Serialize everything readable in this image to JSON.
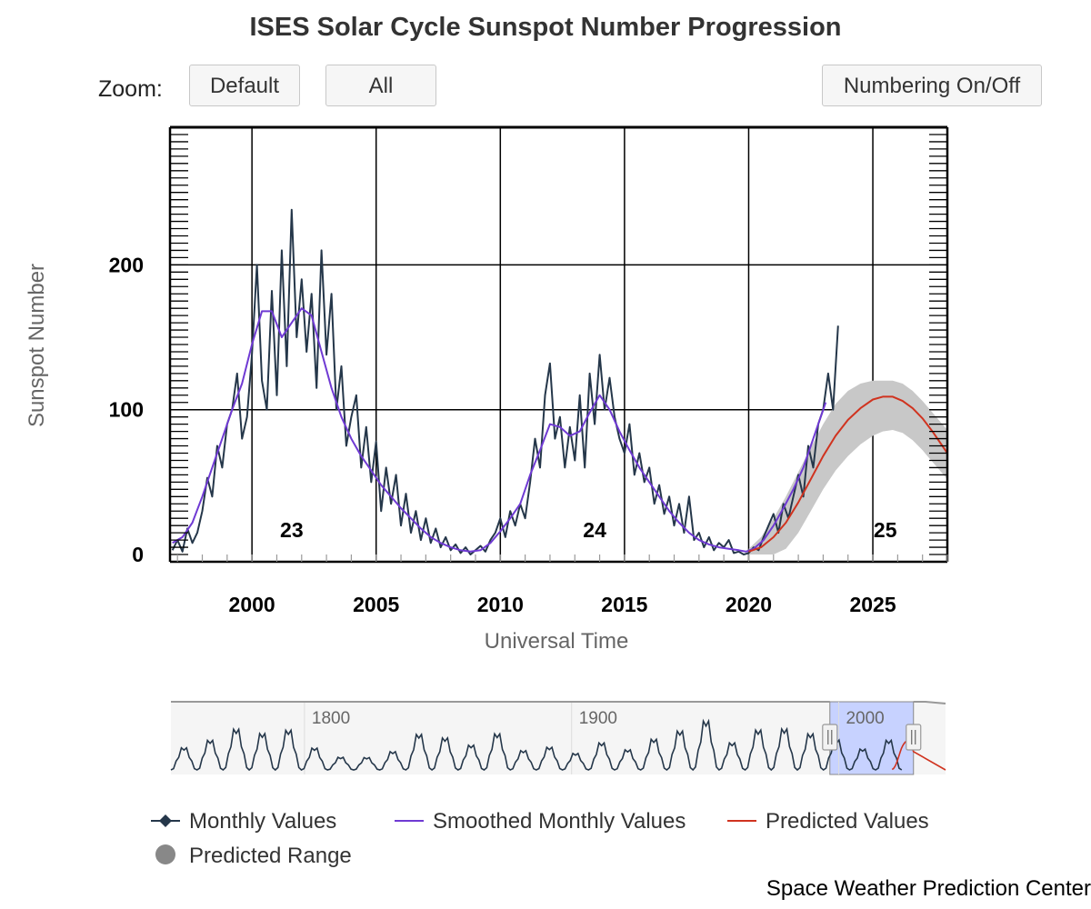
{
  "title": "ISES Solar Cycle Sunspot Number Progression",
  "toolbar": {
    "zoom_label": "Zoom:",
    "default_label": "Default",
    "all_label": "All",
    "numbering_label": "Numbering On/Off"
  },
  "credit": "Space Weather Prediction Center",
  "colors": {
    "monthly": "#25374a",
    "smoothed": "#6f3ad3",
    "predicted": "#d0331f",
    "range": "#c8c8c8",
    "navigator_mask": "#c7d2ff"
  },
  "chart_data": {
    "type": "line",
    "title": "ISES Solar Cycle Sunspot Number Progression",
    "xlabel": "Universal Time",
    "ylabel": "Sunspot Number",
    "xlim": [
      1996.7,
      2028.0
    ],
    "ylim": [
      -5,
      295
    ],
    "x_ticks": [
      2000,
      2005,
      2010,
      2015,
      2020,
      2025
    ],
    "y_ticks": [
      0,
      100,
      200
    ],
    "grid": true,
    "cycle_labels": [
      {
        "label": "23",
        "x": 2001.6,
        "y": 12
      },
      {
        "label": "24",
        "x": 2013.8,
        "y": 12
      },
      {
        "label": "25",
        "x": 2025.5,
        "y": 12
      }
    ],
    "monthly_points": [
      [
        1996.8,
        3
      ],
      [
        1997.0,
        10
      ],
      [
        1997.2,
        2
      ],
      [
        1997.4,
        18
      ],
      [
        1997.6,
        8
      ],
      [
        1997.8,
        15
      ],
      [
        1998.0,
        30
      ],
      [
        1998.2,
        53
      ],
      [
        1998.4,
        40
      ],
      [
        1998.6,
        75
      ],
      [
        1998.8,
        60
      ],
      [
        1999.0,
        90
      ],
      [
        1999.2,
        100
      ],
      [
        1999.4,
        125
      ],
      [
        1999.6,
        80
      ],
      [
        1999.8,
        95
      ],
      [
        2000.0,
        138
      ],
      [
        2000.2,
        200
      ],
      [
        2000.4,
        120
      ],
      [
        2000.6,
        100
      ],
      [
        2000.8,
        182
      ],
      [
        2001.0,
        110
      ],
      [
        2001.2,
        210
      ],
      [
        2001.4,
        130
      ],
      [
        2001.6,
        238
      ],
      [
        2001.8,
        150
      ],
      [
        2002.0,
        190
      ],
      [
        2002.2,
        140
      ],
      [
        2002.4,
        180
      ],
      [
        2002.6,
        115
      ],
      [
        2002.8,
        210
      ],
      [
        2003.0,
        138
      ],
      [
        2003.2,
        180
      ],
      [
        2003.4,
        100
      ],
      [
        2003.6,
        130
      ],
      [
        2003.8,
        75
      ],
      [
        2004.0,
        95
      ],
      [
        2004.2,
        110
      ],
      [
        2004.4,
        60
      ],
      [
        2004.6,
        88
      ],
      [
        2004.8,
        50
      ],
      [
        2005.0,
        78
      ],
      [
        2005.2,
        30
      ],
      [
        2005.4,
        60
      ],
      [
        2005.6,
        35
      ],
      [
        2005.8,
        55
      ],
      [
        2006.0,
        20
      ],
      [
        2006.2,
        42
      ],
      [
        2006.4,
        15
      ],
      [
        2006.6,
        30
      ],
      [
        2006.8,
        10
      ],
      [
        2007.0,
        25
      ],
      [
        2007.2,
        8
      ],
      [
        2007.4,
        18
      ],
      [
        2007.6,
        5
      ],
      [
        2007.8,
        12
      ],
      [
        2008.0,
        3
      ],
      [
        2008.2,
        7
      ],
      [
        2008.4,
        1
      ],
      [
        2008.6,
        5
      ],
      [
        2008.8,
        0
      ],
      [
        2009.0,
        3
      ],
      [
        2009.2,
        6
      ],
      [
        2009.4,
        2
      ],
      [
        2009.6,
        10
      ],
      [
        2009.8,
        15
      ],
      [
        2010.0,
        25
      ],
      [
        2010.2,
        12
      ],
      [
        2010.4,
        30
      ],
      [
        2010.6,
        20
      ],
      [
        2010.8,
        35
      ],
      [
        2011.0,
        25
      ],
      [
        2011.2,
        50
      ],
      [
        2011.4,
        80
      ],
      [
        2011.6,
        60
      ],
      [
        2011.8,
        110
      ],
      [
        2012.0,
        132
      ],
      [
        2012.2,
        80
      ],
      [
        2012.4,
        95
      ],
      [
        2012.6,
        60
      ],
      [
        2012.8,
        88
      ],
      [
        2013.0,
        65
      ],
      [
        2013.2,
        110
      ],
      [
        2013.4,
        60
      ],
      [
        2013.6,
        125
      ],
      [
        2013.8,
        90
      ],
      [
        2014.0,
        138
      ],
      [
        2014.2,
        100
      ],
      [
        2014.4,
        122
      ],
      [
        2014.6,
        95
      ],
      [
        2014.8,
        80
      ],
      [
        2015.0,
        70
      ],
      [
        2015.2,
        90
      ],
      [
        2015.4,
        55
      ],
      [
        2015.6,
        70
      ],
      [
        2015.8,
        50
      ],
      [
        2016.0,
        60
      ],
      [
        2016.2,
        35
      ],
      [
        2016.4,
        48
      ],
      [
        2016.6,
        28
      ],
      [
        2016.8,
        40
      ],
      [
        2017.0,
        20
      ],
      [
        2017.2,
        35
      ],
      [
        2017.4,
        15
      ],
      [
        2017.6,
        40
      ],
      [
        2017.8,
        10
      ],
      [
        2018.0,
        15
      ],
      [
        2018.2,
        5
      ],
      [
        2018.4,
        12
      ],
      [
        2018.6,
        3
      ],
      [
        2018.8,
        8
      ],
      [
        2019.0,
        5
      ],
      [
        2019.2,
        10
      ],
      [
        2019.4,
        1
      ],
      [
        2019.6,
        2
      ],
      [
        2019.8,
        0
      ],
      [
        2020.0,
        1
      ],
      [
        2020.2,
        5
      ],
      [
        2020.4,
        3
      ],
      [
        2020.6,
        12
      ],
      [
        2020.8,
        20
      ],
      [
        2021.0,
        28
      ],
      [
        2021.2,
        15
      ],
      [
        2021.4,
        35
      ],
      [
        2021.6,
        25
      ],
      [
        2021.8,
        40
      ],
      [
        2022.0,
        55
      ],
      [
        2022.2,
        40
      ],
      [
        2022.4,
        75
      ],
      [
        2022.6,
        60
      ],
      [
        2022.8,
        90
      ],
      [
        2023.0,
        100
      ],
      [
        2023.2,
        125
      ],
      [
        2023.4,
        100
      ],
      [
        2023.6,
        158
      ]
    ],
    "smoothed_points": [
      [
        1996.8,
        8
      ],
      [
        1997.2,
        12
      ],
      [
        1997.6,
        22
      ],
      [
        1998.0,
        40
      ],
      [
        1998.4,
        60
      ],
      [
        1998.8,
        80
      ],
      [
        1999.2,
        100
      ],
      [
        1999.6,
        118
      ],
      [
        2000.0,
        145
      ],
      [
        2000.4,
        168
      ],
      [
        2000.8,
        168
      ],
      [
        2001.2,
        150
      ],
      [
        2001.6,
        160
      ],
      [
        2002.0,
        170
      ],
      [
        2002.4,
        165
      ],
      [
        2002.8,
        140
      ],
      [
        2003.2,
        115
      ],
      [
        2003.6,
        95
      ],
      [
        2004.0,
        80
      ],
      [
        2004.4,
        68
      ],
      [
        2004.8,
        58
      ],
      [
        2005.2,
        48
      ],
      [
        2005.6,
        40
      ],
      [
        2006.0,
        32
      ],
      [
        2006.4,
        25
      ],
      [
        2006.8,
        18
      ],
      [
        2007.2,
        12
      ],
      [
        2007.6,
        8
      ],
      [
        2008.0,
        5
      ],
      [
        2008.4,
        3
      ],
      [
        2008.8,
        2
      ],
      [
        2009.2,
        3
      ],
      [
        2009.6,
        8
      ],
      [
        2010.0,
        16
      ],
      [
        2010.4,
        25
      ],
      [
        2010.8,
        35
      ],
      [
        2011.2,
        55
      ],
      [
        2011.6,
        72
      ],
      [
        2012.0,
        90
      ],
      [
        2012.4,
        88
      ],
      [
        2012.8,
        82
      ],
      [
        2013.2,
        85
      ],
      [
        2013.6,
        98
      ],
      [
        2014.0,
        110
      ],
      [
        2014.4,
        100
      ],
      [
        2014.8,
        85
      ],
      [
        2015.2,
        72
      ],
      [
        2015.6,
        60
      ],
      [
        2016.0,
        50
      ],
      [
        2016.4,
        40
      ],
      [
        2016.8,
        30
      ],
      [
        2017.2,
        22
      ],
      [
        2017.6,
        15
      ],
      [
        2018.0,
        10
      ],
      [
        2018.4,
        7
      ],
      [
        2018.8,
        5
      ],
      [
        2019.2,
        4
      ],
      [
        2019.6,
        3
      ],
      [
        2019.9,
        2
      ],
      [
        2020.2,
        4
      ],
      [
        2020.6,
        10
      ],
      [
        2021.0,
        20
      ],
      [
        2021.4,
        32
      ],
      [
        2021.8,
        45
      ],
      [
        2022.2,
        60
      ],
      [
        2022.6,
        80
      ],
      [
        2022.9,
        95
      ],
      [
        2023.1,
        105
      ]
    ],
    "predicted_points": [
      [
        2020.0,
        2
      ],
      [
        2020.5,
        5
      ],
      [
        2021.0,
        12
      ],
      [
        2021.5,
        22
      ],
      [
        2022.0,
        36
      ],
      [
        2022.5,
        52
      ],
      [
        2023.0,
        68
      ],
      [
        2023.5,
        82
      ],
      [
        2024.0,
        93
      ],
      [
        2024.5,
        101
      ],
      [
        2025.0,
        107
      ],
      [
        2025.4,
        109
      ],
      [
        2025.8,
        109
      ],
      [
        2026.2,
        106
      ],
      [
        2026.6,
        101
      ],
      [
        2027.0,
        94
      ],
      [
        2027.4,
        85
      ],
      [
        2027.8,
        75
      ],
      [
        2028.0,
        70
      ]
    ],
    "predicted_range": {
      "x": [
        2020.0,
        2020.5,
        2021.0,
        2021.5,
        2022.0,
        2022.5,
        2023.0,
        2023.5,
        2024.0,
        2024.5,
        2025.0,
        2025.4,
        2025.8,
        2026.2,
        2026.6,
        2027.0,
        2027.4,
        2027.8,
        2028.0
      ],
      "lower": [
        0,
        0,
        0,
        4,
        15,
        30,
        45,
        58,
        68,
        76,
        82,
        85,
        86,
        84,
        79,
        72,
        64,
        56,
        52
      ],
      "upper": [
        4,
        12,
        25,
        40,
        57,
        74,
        90,
        104,
        113,
        118,
        120,
        120,
        120,
        118,
        113,
        106,
        98,
        90,
        86
      ]
    },
    "navigator": {
      "labels": [
        {
          "year": 1800
        },
        {
          "year": 1900
        },
        {
          "year": 2000
        }
      ],
      "range_years": [
        1750,
        2040
      ],
      "selection": [
        1996.7,
        2028.0
      ],
      "peaks": [
        86,
        115,
        158,
        141,
        154,
        85,
        49,
        48,
        71,
        138,
        124,
        96,
        140,
        75,
        88,
        64,
        105,
        78,
        119,
        151,
        190,
        105,
        155,
        159,
        140,
        116,
        81,
        115
      ]
    },
    "legend": [
      {
        "name": "Monthly Values",
        "marker": "diamond"
      },
      {
        "name": "Smoothed Monthly Values",
        "marker": "line"
      },
      {
        "name": "Predicted Values",
        "marker": "line"
      },
      {
        "name": "Predicted Range",
        "marker": "circle"
      }
    ]
  }
}
